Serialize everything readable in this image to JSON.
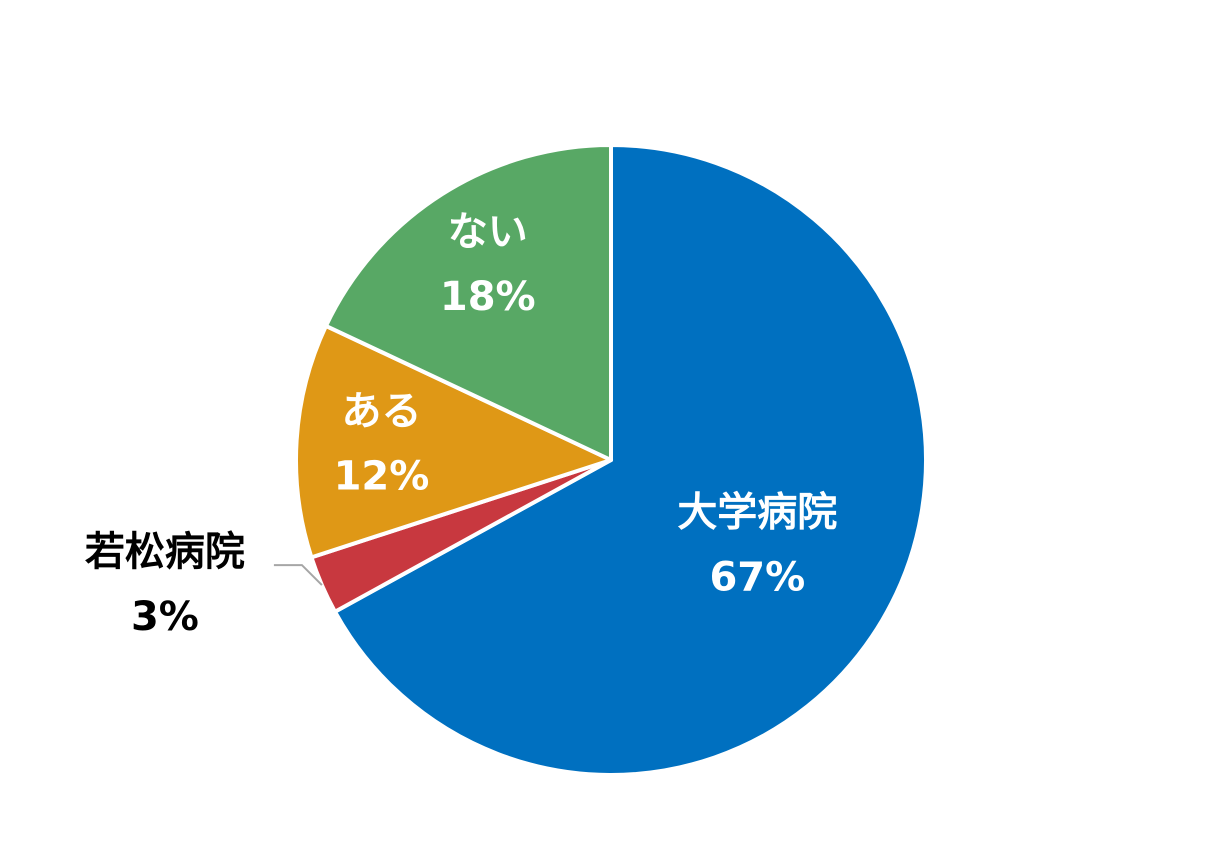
{
  "chart_data": {
    "type": "pie",
    "categories": [
      "大学病院",
      "若松病院",
      "ある",
      "ない"
    ],
    "values": [
      67,
      3,
      12,
      18
    ],
    "value_labels": [
      "67%",
      "3%",
      "12%",
      "18%"
    ],
    "colors": [
      "#0070c0",
      "#c8383f",
      "#df9816",
      "#58a865"
    ]
  }
}
